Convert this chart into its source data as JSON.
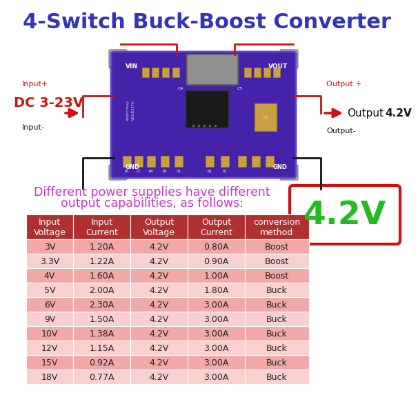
{
  "title": "4-Switch Buck-Boost Converter",
  "title_color": "#3333bb",
  "title_fontsize": 22,
  "subtitle_line1": "Different power supplies have different",
  "subtitle_line2": "output capabilities, as follows:",
  "subtitle_color": "#cc33cc",
  "subtitle_fontsize": 12.5,
  "input_label_top": "Input+",
  "input_label_main": "DC 3-23V",
  "input_label_bottom": "Input-",
  "output_label_top": "Output +",
  "output_label_main": "Output",
  "output_label_42": "4.2V",
  "output_label_bottom": "Output-",
  "voltage_display": "4.2V",
  "voltage_color": "#22bb22",
  "voltage_border_color": "#cc1111",
  "table_header": [
    "Input\nVoltage",
    "Input\nCurrent",
    "Output\nVoltage",
    "Output\nCurrent",
    "conversion\nmethod"
  ],
  "table_data": [
    [
      "3V",
      "1.20A",
      "4.2V",
      "0.80A",
      "Boost"
    ],
    [
      "3.3V",
      "1.22A",
      "4.2V",
      "0.90A",
      "Boost"
    ],
    [
      "4V",
      "1.60A",
      "4.2V",
      "1.00A",
      "Boost"
    ],
    [
      "5V",
      "2.00A",
      "4.2V",
      "1.80A",
      "Buck"
    ],
    [
      "6V",
      "2.30A",
      "4.2V",
      "3.00A",
      "Buck"
    ],
    [
      "9V",
      "1.50A",
      "4.2V",
      "3.00A",
      "Buck"
    ],
    [
      "10V",
      "1.38A",
      "4.2V",
      "3.00A",
      "Buck"
    ],
    [
      "12V",
      "1.15A",
      "4.2V",
      "3.00A",
      "Buck"
    ],
    [
      "15V",
      "0.92A",
      "4.2V",
      "3.00A",
      "Buck"
    ],
    [
      "18V",
      "0.77A",
      "4.2V",
      "3.00A",
      "Buck"
    ]
  ],
  "table_header_bg": "#b03030",
  "table_header_text": "#ffffff",
  "table_row_odd_bg": "#f0a8a8",
  "table_row_even_bg": "#f8d0d0",
  "table_text_color": "#222222",
  "table_fontsize": 9,
  "bg_color": "#ffffff",
  "red_color": "#cc1111",
  "black_color": "#111111"
}
